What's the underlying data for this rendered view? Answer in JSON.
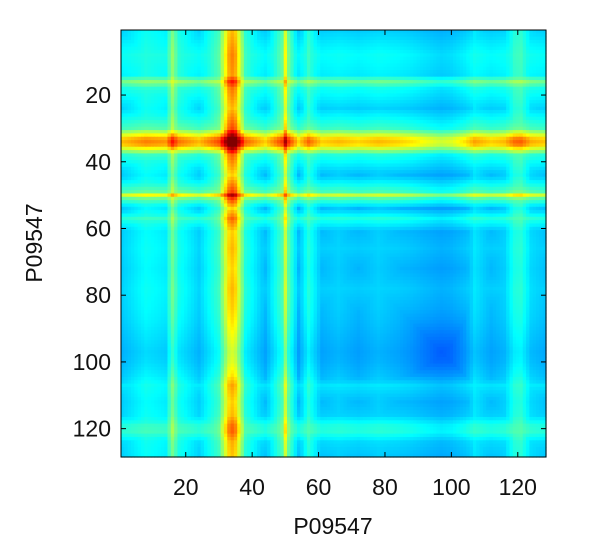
{
  "chart_data": {
    "type": "heatmap",
    "title": "",
    "xlabel": "P09547",
    "ylabel": "P09547",
    "x_range": [
      1,
      128
    ],
    "y_range": [
      1,
      128
    ],
    "y_reversed": true,
    "x_ticks": [
      20,
      40,
      60,
      80,
      100,
      120
    ],
    "y_ticks": [
      20,
      40,
      60,
      80,
      100,
      120
    ],
    "colormap": "jet",
    "grid": false,
    "legend": "none",
    "residue_profile": {
      "1": 0.3,
      "8": 0.4,
      "14": 0.36,
      "16": 0.6,
      "18": 0.42,
      "24": 0.3,
      "30": 0.5,
      "33": 0.95,
      "34": 1.0,
      "35": 0.95,
      "38": 0.45,
      "44": 0.26,
      "49": 0.52,
      "50": 0.78,
      "51": 0.55,
      "54": 0.25,
      "57": 0.45,
      "61": 0.26,
      "66": 0.3,
      "72": 0.25,
      "78": 0.3,
      "84": 0.26,
      "88": 0.22,
      "92": 0.16,
      "97": 0.09,
      "100": 0.12,
      "104": 0.22,
      "107": 0.34,
      "112": 0.26,
      "116": 0.3,
      "119": 0.44,
      "121": 0.46,
      "124": 0.32,
      "128": 0.28
    }
  }
}
